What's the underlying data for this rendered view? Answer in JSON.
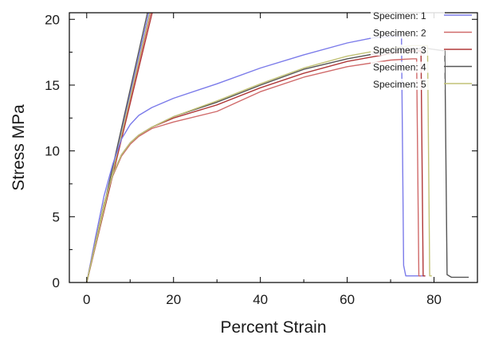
{
  "chart_data": {
    "type": "line",
    "xlabel": "Percent Strain",
    "ylabel": "Stress MPa",
    "xlim": [
      -4,
      90
    ],
    "ylim": [
      0,
      20.5
    ],
    "xticks": [
      0,
      20,
      40,
      60,
      80
    ],
    "yticks": [
      0,
      5,
      10,
      15,
      20
    ],
    "grid": false,
    "legend_position": "top-right",
    "series": [
      {
        "name": "Specimen: 1",
        "color": "#7b7bea",
        "x": [
          0,
          2,
          4,
          6,
          8,
          10,
          12,
          15,
          20,
          30,
          40,
          50,
          60,
          66,
          71,
          72.5,
          73,
          73.5,
          75,
          78
        ],
        "y": [
          0,
          3.4,
          6.6,
          9.0,
          10.9,
          12.0,
          12.7,
          13.3,
          14.0,
          15.1,
          16.3,
          17.3,
          18.2,
          18.6,
          18.7,
          18.7,
          1.3,
          0.5,
          0.5,
          0.5
        ]
      },
      {
        "name": "Specimen: 2",
        "color": "#d06a6a",
        "x": [
          0,
          2,
          4,
          6,
          8,
          10,
          12,
          15,
          20,
          30,
          40,
          50,
          60,
          70,
          75,
          76,
          76.5,
          77
        ],
        "y": [
          0,
          3.0,
          6.0,
          8.1,
          9.6,
          10.5,
          11.1,
          11.7,
          12.2,
          13.0,
          14.5,
          15.6,
          16.4,
          16.9,
          17.0,
          17.0,
          0.5,
          0.5
        ]
      },
      {
        "name": "Specimen: 3",
        "color": "#b03838",
        "x": [
          0,
          2,
          4,
          6,
          8,
          10,
          12,
          15,
          20,
          30,
          40,
          50,
          60,
          70,
          75,
          77,
          77.5,
          78
        ],
        "y": [
          0,
          3.0,
          6.0,
          8.2,
          9.7,
          10.6,
          11.2,
          11.8,
          12.5,
          13.5,
          14.8,
          15.9,
          16.8,
          17.4,
          17.6,
          17.6,
          0.5,
          0.5
        ]
      },
      {
        "name": "Specimen: 4",
        "color": "#555555",
        "x": [
          0,
          2,
          4,
          6,
          8,
          10,
          12,
          15,
          20,
          30,
          40,
          50,
          60,
          70,
          78,
          82.5,
          83,
          84,
          88
        ],
        "y": [
          0,
          3.0,
          6.0,
          8.2,
          9.7,
          10.6,
          11.2,
          11.8,
          12.6,
          13.7,
          15.0,
          16.2,
          17.0,
          17.6,
          17.8,
          17.6,
          0.6,
          0.4,
          0.4
        ]
      },
      {
        "name": "Specimen: 5",
        "color": "#c2c276",
        "x": [
          0,
          2,
          4,
          6,
          8,
          10,
          12,
          15,
          20,
          30,
          40,
          50,
          60,
          70,
          75,
          78.5,
          79,
          79.5
        ],
        "y": [
          0,
          3.0,
          6.0,
          8.2,
          9.7,
          10.6,
          11.2,
          11.8,
          12.6,
          13.8,
          15.1,
          16.3,
          17.2,
          17.8,
          18.0,
          18.0,
          0.5,
          0.5
        ]
      }
    ],
    "modulus_lines": [
      {
        "series": "Specimen: 1",
        "color": "#7b7bea",
        "x": [
          0,
          14.3
        ],
        "y": [
          0,
          20.5
        ]
      },
      {
        "series": "Specimen: 2",
        "color": "#d06a6a",
        "x": [
          0,
          14.8
        ],
        "y": [
          0,
          20.5
        ]
      },
      {
        "series": "Specimen: 3",
        "color": "#b03838",
        "x": [
          0,
          15.1
        ],
        "y": [
          0,
          20.5
        ]
      },
      {
        "series": "Specimen: 4",
        "color": "#555555",
        "x": [
          0,
          14.0
        ],
        "y": [
          0,
          20.5
        ]
      },
      {
        "series": "Specimen: 5",
        "color": "#c2c276",
        "x": [
          0,
          14.6
        ],
        "y": [
          0,
          20.5
        ]
      }
    ]
  }
}
